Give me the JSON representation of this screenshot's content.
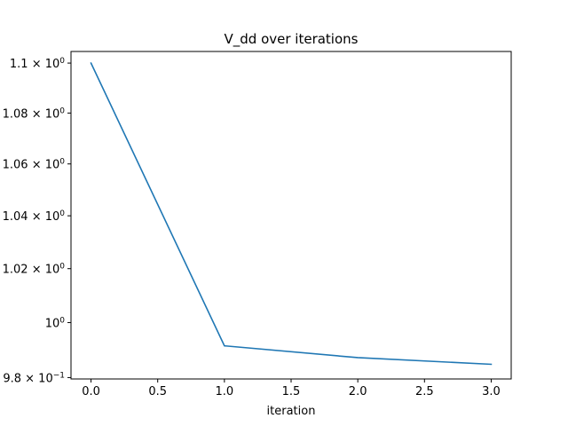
{
  "chart_data": {
    "type": "line",
    "title": "V_dd over iterations",
    "xlabel": "iteration",
    "ylabel": "",
    "yscale": "log",
    "grid": false,
    "xlim": [
      -0.15,
      3.15
    ],
    "ylim": [
      0.9795,
      1.1047
    ],
    "x_ticks": [
      0.0,
      0.5,
      1.0,
      1.5,
      2.0,
      2.5,
      3.0
    ],
    "x_tick_labels": [
      "0.0",
      "0.5",
      "1.0",
      "1.5",
      "2.0",
      "2.5",
      "3.0"
    ],
    "y_ticks": [
      {
        "value": 0.98,
        "mantissa": "9.8",
        "exp": "−1"
      },
      {
        "value": 1.0,
        "mantissa": "",
        "exp": "0"
      },
      {
        "value": 1.02,
        "mantissa": "1.02",
        "exp": "0"
      },
      {
        "value": 1.04,
        "mantissa": "1.04",
        "exp": "0"
      },
      {
        "value": 1.06,
        "mantissa": "1.06",
        "exp": "0"
      },
      {
        "value": 1.08,
        "mantissa": "1.08",
        "exp": "0"
      },
      {
        "value": 1.1,
        "mantissa": "1.1",
        "exp": "0"
      }
    ],
    "series": [
      {
        "color": "#1f77b4",
        "x": [
          0,
          1,
          2,
          3
        ],
        "y": [
          1.1,
          0.9915,
          0.9872,
          0.9848
        ]
      }
    ]
  }
}
